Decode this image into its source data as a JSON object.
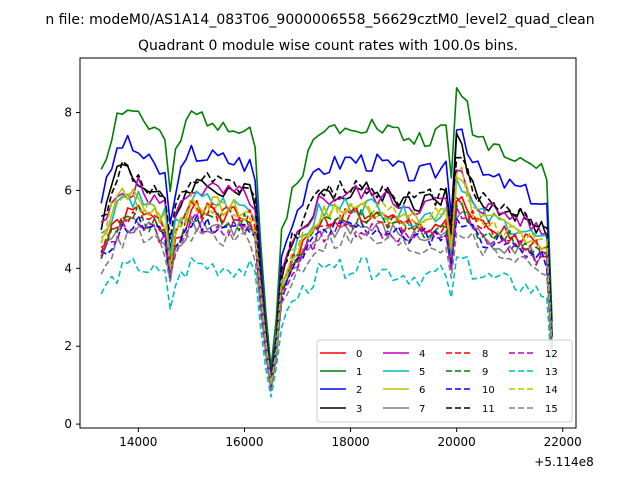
{
  "chart_data": {
    "type": "line",
    "suptitle": "n file: modeM0/AS1A14_083T06_9000006558_56629cztM0_level2_quad_clean",
    "title": "Quadrant 0 module wise count rates with 100.0s bins.",
    "xlabel": "",
    "ylabel": "",
    "x_offset_label": "+5.114e8",
    "x_offset": 511400000,
    "xlim": [
      12900,
      22250
    ],
    "ylim": [
      -0.1,
      9.4
    ],
    "x_ticks": [
      14000,
      16000,
      18000,
      20000,
      22000
    ],
    "x_tick_labels": [
      "14000",
      "16000",
      "18000",
      "20000",
      "22000"
    ],
    "y_ticks": [
      0,
      2,
      4,
      6,
      8
    ],
    "y_tick_labels": [
      "0",
      "2",
      "4",
      "6",
      "8"
    ],
    "grid": false,
    "legend_position": "lower-right",
    "legend_columns": 4,
    "x_start": 13300,
    "x_step": 100,
    "n_points": 86,
    "anchor_x": [
      13300,
      13600,
      14000,
      14500,
      14550,
      14700,
      15000,
      16100,
      16200,
      16350,
      16550,
      16650,
      16900,
      17400,
      18000,
      18600,
      19200,
      19800,
      19850,
      20000,
      20500,
      21200,
      21750,
      21800
    ],
    "anchor_profile": [
      0.8,
      0.87,
      0.97,
      0.9,
      0.64,
      0.86,
      0.98,
      0.94,
      0.88,
      0.45,
      0.08,
      0.58,
      0.74,
      0.92,
      0.96,
      0.94,
      0.9,
      0.92,
      0.6,
      0.96,
      0.9,
      0.85,
      0.78,
      0.32
    ],
    "series": [
      {
        "name": "0",
        "color": "#ff0000",
        "dash": "solid",
        "level": 5.6,
        "peak_boost": 0.3
      },
      {
        "name": "1",
        "color": "#008000",
        "dash": "solid",
        "level": 8.1,
        "peak_boost": 1.0
      },
      {
        "name": "2",
        "color": "#0000ff",
        "dash": "solid",
        "level": 7.1,
        "peak_boost": 1.0
      },
      {
        "name": "3",
        "color": "#000000",
        "dash": "solid",
        "level": 6.3,
        "peak_boost": 1.3
      },
      {
        "name": "4",
        "color": "#bf00bf",
        "dash": "solid",
        "level": 6.2,
        "peak_boost": 0.5
      },
      {
        "name": "5",
        "color": "#00bfbf",
        "dash": "solid",
        "level": 5.9,
        "peak_boost": 0.7
      },
      {
        "name": "6",
        "color": "#bfbf00",
        "dash": "solid",
        "level": 5.8,
        "peak_boost": 1.0
      },
      {
        "name": "7",
        "color": "#808080",
        "dash": "solid",
        "level": 5.3,
        "peak_boost": 0.5
      },
      {
        "name": "8",
        "color": "#ff0000",
        "dash": "dashed",
        "level": 5.6,
        "peak_boost": 0.3
      },
      {
        "name": "9",
        "color": "#008000",
        "dash": "dashed",
        "level": 5.5,
        "peak_boost": 0.3
      },
      {
        "name": "10",
        "color": "#0000ff",
        "dash": "dashed",
        "level": 5.3,
        "peak_boost": 0.3
      },
      {
        "name": "11",
        "color": "#000000",
        "dash": "dashed",
        "level": 6.4,
        "peak_boost": 1.0
      },
      {
        "name": "12",
        "color": "#bf00bf",
        "dash": "dashed",
        "level": 5.3,
        "peak_boost": 0.3
      },
      {
        "name": "13",
        "color": "#00bfbf",
        "dash": "dashed",
        "level": 4.2,
        "peak_boost": 0.2
      },
      {
        "name": "14",
        "color": "#bfbf00",
        "dash": "dashed",
        "level": 5.8,
        "peak_boost": 1.0
      },
      {
        "name": "15",
        "color": "#808080",
        "dash": "dashed",
        "level": 5.0,
        "peak_boost": 0.3
      }
    ]
  }
}
